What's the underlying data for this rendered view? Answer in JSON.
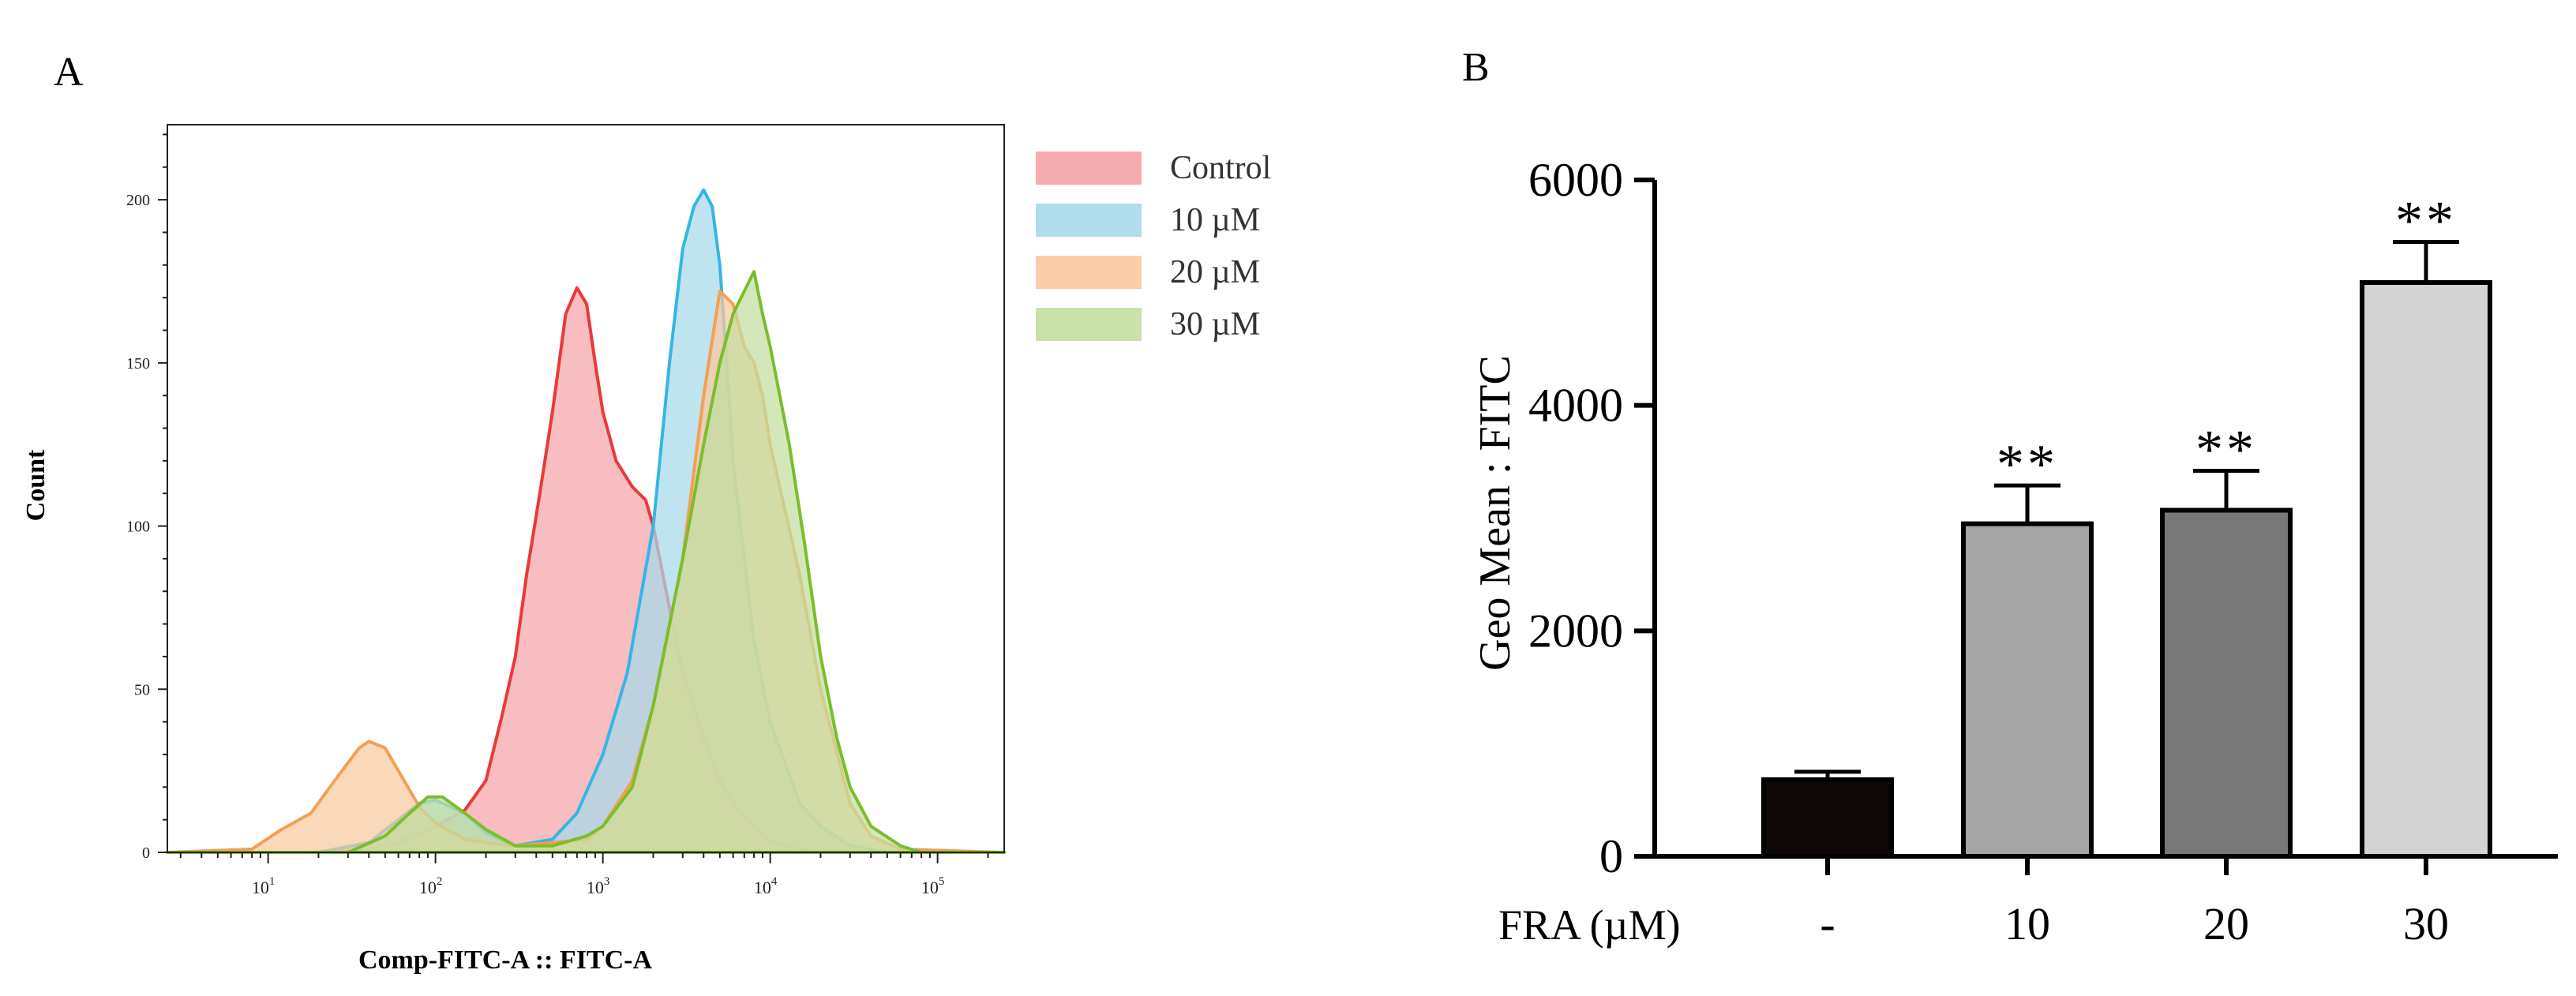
{
  "chart_data": [
    {
      "panel_label": "A",
      "type": "area",
      "title": "",
      "xlabel": "Comp-FITC-A :: FITC-A",
      "ylabel": "Count",
      "x_scale": "log",
      "xlim": [
        2.5,
        250000
      ],
      "ylim": [
        0,
        223
      ],
      "x_ticks": [
        {
          "value": 10,
          "base": "10",
          "exp": "1"
        },
        {
          "value": 100,
          "base": "10",
          "exp": "2"
        },
        {
          "value": 1000,
          "base": "10",
          "exp": "3"
        },
        {
          "value": 10000,
          "base": "10",
          "exp": "4"
        },
        {
          "value": 100000,
          "base": "10",
          "exp": "5"
        }
      ],
      "y_ticks": [
        0,
        50,
        100,
        150,
        200
      ],
      "legend_position": "right",
      "series": [
        {
          "name": "Control",
          "fill": "#f4a3a8",
          "stroke": "#e83a3a",
          "points": [
            [
              2.5,
              0
            ],
            [
              20,
              0
            ],
            [
              40,
              1
            ],
            [
              60,
              3
            ],
            [
              100,
              8
            ],
            [
              150,
              13
            ],
            [
              200,
              22
            ],
            [
              250,
              42
            ],
            [
              300,
              60
            ],
            [
              350,
              85
            ],
            [
              420,
              110
            ],
            [
              500,
              135
            ],
            [
              600,
              165
            ],
            [
              700,
              173
            ],
            [
              800,
              168
            ],
            [
              900,
              150
            ],
            [
              1000,
              135
            ],
            [
              1200,
              120
            ],
            [
              1500,
              112
            ],
            [
              1800,
              108
            ],
            [
              2000,
              100
            ],
            [
              2500,
              75
            ],
            [
              3000,
              55
            ],
            [
              4000,
              35
            ],
            [
              5000,
              22
            ],
            [
              6000,
              15
            ],
            [
              8000,
              8
            ],
            [
              10000,
              3
            ],
            [
              15000,
              1
            ],
            [
              20000,
              0
            ],
            [
              250000,
              0
            ]
          ]
        },
        {
          "name": "10 µM",
          "fill": "#a8d8ea",
          "stroke": "#35b6e4",
          "points": [
            [
              2.5,
              0
            ],
            [
              20,
              0
            ],
            [
              40,
              3
            ],
            [
              60,
              10
            ],
            [
              80,
              15
            ],
            [
              100,
              16
            ],
            [
              150,
              12
            ],
            [
              200,
              6
            ],
            [
              300,
              2
            ],
            [
              500,
              4
            ],
            [
              700,
              12
            ],
            [
              1000,
              30
            ],
            [
              1400,
              55
            ],
            [
              2000,
              100
            ],
            [
              2500,
              150
            ],
            [
              3000,
              185
            ],
            [
              3500,
              198
            ],
            [
              4000,
              203
            ],
            [
              4500,
              198
            ],
            [
              5000,
              180
            ],
            [
              5500,
              150
            ],
            [
              6000,
              120
            ],
            [
              7000,
              90
            ],
            [
              8000,
              65
            ],
            [
              10000,
              40
            ],
            [
              15000,
              15
            ],
            [
              20000,
              8
            ],
            [
              30000,
              2
            ],
            [
              50000,
              0
            ],
            [
              250000,
              0
            ]
          ]
        },
        {
          "name": "20 µM",
          "fill": "#f8c9a0",
          "stroke": "#f2a055",
          "points": [
            [
              2.5,
              0
            ],
            [
              8,
              1
            ],
            [
              12,
              7
            ],
            [
              18,
              12
            ],
            [
              25,
              22
            ],
            [
              35,
              32
            ],
            [
              40,
              34
            ],
            [
              50,
              32
            ],
            [
              60,
              25
            ],
            [
              80,
              14
            ],
            [
              100,
              9
            ],
            [
              150,
              4
            ],
            [
              200,
              3
            ],
            [
              300,
              2
            ],
            [
              500,
              3
            ],
            [
              800,
              4
            ],
            [
              1000,
              8
            ],
            [
              1500,
              22
            ],
            [
              2000,
              45
            ],
            [
              3000,
              90
            ],
            [
              4000,
              140
            ],
            [
              5000,
              172
            ],
            [
              6000,
              168
            ],
            [
              7000,
              155
            ],
            [
              8000,
              150
            ],
            [
              9000,
              140
            ],
            [
              10000,
              125
            ],
            [
              15000,
              85
            ],
            [
              20000,
              50
            ],
            [
              30000,
              15
            ],
            [
              40000,
              5
            ],
            [
              60000,
              1
            ],
            [
              250000,
              0
            ]
          ]
        },
        {
          "name": "30 µM",
          "fill": "#c4dea0",
          "stroke": "#7cbd2c",
          "points": [
            [
              2.5,
              0
            ],
            [
              30,
              0
            ],
            [
              50,
              5
            ],
            [
              70,
              12
            ],
            [
              90,
              17
            ],
            [
              110,
              17
            ],
            [
              150,
              12
            ],
            [
              200,
              7
            ],
            [
              300,
              2
            ],
            [
              500,
              2
            ],
            [
              800,
              5
            ],
            [
              1000,
              8
            ],
            [
              1500,
              20
            ],
            [
              2000,
              45
            ],
            [
              3000,
              90
            ],
            [
              4000,
              125
            ],
            [
              5000,
              150
            ],
            [
              6000,
              165
            ],
            [
              7000,
              172
            ],
            [
              8000,
              178
            ],
            [
              9000,
              165
            ],
            [
              10000,
              155
            ],
            [
              13000,
              125
            ],
            [
              16000,
              95
            ],
            [
              20000,
              60
            ],
            [
              25000,
              35
            ],
            [
              30000,
              20
            ],
            [
              40000,
              8
            ],
            [
              60000,
              2
            ],
            [
              80000,
              0
            ],
            [
              250000,
              0
            ]
          ]
        }
      ]
    },
    {
      "panel_label": "B",
      "type": "bar",
      "title": "",
      "xlabel": "FRA (µM)",
      "ylabel": "Geo Mean : FITC",
      "ylim": [
        0,
        6000
      ],
      "y_ticks": [
        0,
        2000,
        4000,
        6000
      ],
      "categories": [
        "-",
        "10",
        "20",
        "30"
      ],
      "values": [
        680,
        2950,
        3070,
        5090
      ],
      "errors": [
        70,
        340,
        350,
        360
      ],
      "significance": [
        "",
        "**",
        "**",
        "**"
      ],
      "bar_colors": [
        "#0d0706",
        "#a6a5a5",
        "#797878",
        "#d3d3d3"
      ]
    }
  ]
}
